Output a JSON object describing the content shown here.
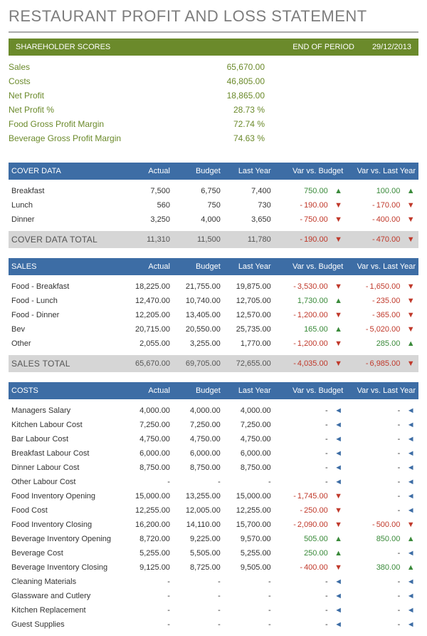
{
  "title": "RESTAURANT PROFIT AND LOSS STATEMENT",
  "shareholder": {
    "banner_left": "SHAREHOLDER SCORES",
    "banner_mid": "END OF PERIOD",
    "banner_date": "29/12/2013",
    "rows": [
      {
        "label": "Sales",
        "value": "65,670.00"
      },
      {
        "label": "Costs",
        "value": "46,805.00"
      },
      {
        "label": "Net Profit",
        "value": "18,865.00"
      },
      {
        "label": "Net Profit %",
        "value": "28.73  %"
      },
      {
        "label": "Food Gross Profit Margin",
        "value": "72.74  %"
      },
      {
        "label": "Beverage Gross Profit Margin",
        "value": "74.63  %"
      }
    ]
  },
  "columns": {
    "c0": "",
    "c1": "Actual",
    "c2": "Budget",
    "c3": "Last Year",
    "c4": "Var vs. Budget",
    "c5": "Var vs. Last Year"
  },
  "sections": [
    {
      "name": "COVER DATA",
      "rows": [
        {
          "label": "Breakfast",
          "actual": "7,500",
          "budget": "6,750",
          "last": "7,400",
          "vb": "750.00",
          "vb_neg": false,
          "vb_ind": "up",
          "vl": "100.00",
          "vl_neg": false,
          "vl_ind": "up"
        },
        {
          "label": "Lunch",
          "actual": "560",
          "budget": "750",
          "last": "730",
          "vb": "190.00",
          "vb_neg": true,
          "vb_ind": "dn",
          "vl": "170.00",
          "vl_neg": true,
          "vl_ind": "dn"
        },
        {
          "label": "Dinner",
          "actual": "3,250",
          "budget": "4,000",
          "last": "3,650",
          "vb": "750.00",
          "vb_neg": true,
          "vb_ind": "dn",
          "vl": "400.00",
          "vl_neg": true,
          "vl_ind": "dn"
        }
      ],
      "total": {
        "label": "COVER DATA TOTAL",
        "actual": "11,310",
        "budget": "11,500",
        "last": "11,780",
        "vb": "190.00",
        "vb_neg": true,
        "vb_ind": "dn",
        "vl": "470.00",
        "vl_neg": true,
        "vl_ind": "dn"
      }
    },
    {
      "name": "SALES",
      "rows": [
        {
          "label": "Food - Breakfast",
          "actual": "18,225.00",
          "budget": "21,755.00",
          "last": "19,875.00",
          "vb": "3,530.00",
          "vb_neg": true,
          "vb_ind": "dn",
          "vl": "1,650.00",
          "vl_neg": true,
          "vl_ind": "dn"
        },
        {
          "label": "Food - Lunch",
          "actual": "12,470.00",
          "budget": "10,740.00",
          "last": "12,705.00",
          "vb": "1,730.00",
          "vb_neg": false,
          "vb_ind": "up",
          "vl": "235.00",
          "vl_neg": true,
          "vl_ind": "dn"
        },
        {
          "label": "Food - Dinner",
          "actual": "12,205.00",
          "budget": "13,405.00",
          "last": "12,570.00",
          "vb": "1,200.00",
          "vb_neg": true,
          "vb_ind": "dn",
          "vl": "365.00",
          "vl_neg": true,
          "vl_ind": "dn"
        },
        {
          "label": "Bev",
          "actual": "20,715.00",
          "budget": "20,550.00",
          "last": "25,735.00",
          "vb": "165.00",
          "vb_neg": false,
          "vb_ind": "up",
          "vl": "5,020.00",
          "vl_neg": true,
          "vl_ind": "dn"
        },
        {
          "label": "Other",
          "actual": "2,055.00",
          "budget": "3,255.00",
          "last": "1,770.00",
          "vb": "1,200.00",
          "vb_neg": true,
          "vb_ind": "dn",
          "vl": "285.00",
          "vl_neg": false,
          "vl_ind": "up"
        }
      ],
      "total": {
        "label": "SALES TOTAL",
        "actual": "65,670.00",
        "budget": "69,705.00",
        "last": "72,655.00",
        "vb": "4,035.00",
        "vb_neg": true,
        "vb_ind": "dn",
        "vl": "6,985.00",
        "vl_neg": true,
        "vl_ind": "dn"
      }
    },
    {
      "name": "COSTS",
      "rows": [
        {
          "label": "Managers Salary",
          "actual": "4,000.00",
          "budget": "4,000.00",
          "last": "4,000.00",
          "vb": "-",
          "vb_neg": null,
          "vb_ind": "eq",
          "vl": "-",
          "vl_neg": null,
          "vl_ind": "eq"
        },
        {
          "label": "Kitchen Labour Cost",
          "actual": "7,250.00",
          "budget": "7,250.00",
          "last": "7,250.00",
          "vb": "-",
          "vb_neg": null,
          "vb_ind": "eq",
          "vl": "-",
          "vl_neg": null,
          "vl_ind": "eq"
        },
        {
          "label": "Bar Labour Cost",
          "actual": "4,750.00",
          "budget": "4,750.00",
          "last": "4,750.00",
          "vb": "-",
          "vb_neg": null,
          "vb_ind": "eq",
          "vl": "-",
          "vl_neg": null,
          "vl_ind": "eq"
        },
        {
          "label": "Breakfast Labour Cost",
          "actual": "6,000.00",
          "budget": "6,000.00",
          "last": "6,000.00",
          "vb": "-",
          "vb_neg": null,
          "vb_ind": "eq",
          "vl": "-",
          "vl_neg": null,
          "vl_ind": "eq"
        },
        {
          "label": "Dinner Labour Cost",
          "actual": "8,750.00",
          "budget": "8,750.00",
          "last": "8,750.00",
          "vb": "-",
          "vb_neg": null,
          "vb_ind": "eq",
          "vl": "-",
          "vl_neg": null,
          "vl_ind": "eq"
        },
        {
          "label": "Other Labour Cost",
          "actual": "-",
          "budget": "-",
          "last": "-",
          "vb": "-",
          "vb_neg": null,
          "vb_ind": "eq",
          "vl": "-",
          "vl_neg": null,
          "vl_ind": "eq"
        },
        {
          "label": "Food Inventory Opening",
          "actual": "15,000.00",
          "budget": "13,255.00",
          "last": "15,000.00",
          "vb": "1,745.00",
          "vb_neg": true,
          "vb_ind": "dn",
          "vl": "-",
          "vl_neg": null,
          "vl_ind": "eq"
        },
        {
          "label": "Food Cost",
          "actual": "12,255.00",
          "budget": "12,005.00",
          "last": "12,255.00",
          "vb": "250.00",
          "vb_neg": true,
          "vb_ind": "dn",
          "vl": "-",
          "vl_neg": null,
          "vl_ind": "eq"
        },
        {
          "label": "Food Inventory Closing",
          "actual": "16,200.00",
          "budget": "14,110.00",
          "last": "15,700.00",
          "vb": "2,090.00",
          "vb_neg": true,
          "vb_ind": "dn",
          "vl": "500.00",
          "vl_neg": true,
          "vl_ind": "dn"
        },
        {
          "label": "Beverage Inventory Opening",
          "actual": "8,720.00",
          "budget": "9,225.00",
          "last": "9,570.00",
          "vb": "505.00",
          "vb_neg": false,
          "vb_ind": "up",
          "vl": "850.00",
          "vl_neg": false,
          "vl_ind": "up"
        },
        {
          "label": "Beverage Cost",
          "actual": "5,255.00",
          "budget": "5,505.00",
          "last": "5,255.00",
          "vb": "250.00",
          "vb_neg": false,
          "vb_ind": "up",
          "vl": "-",
          "vl_neg": null,
          "vl_ind": "eq"
        },
        {
          "label": "Beverage Inventory Closing",
          "actual": "9,125.00",
          "budget": "8,725.00",
          "last": "9,505.00",
          "vb": "400.00",
          "vb_neg": true,
          "vb_ind": "dn",
          "vl": "380.00",
          "vl_neg": false,
          "vl_ind": "up"
        },
        {
          "label": "Cleaning Materials",
          "actual": "-",
          "budget": "-",
          "last": "-",
          "vb": "-",
          "vb_neg": null,
          "vb_ind": "eq",
          "vl": "-",
          "vl_neg": null,
          "vl_ind": "eq"
        },
        {
          "label": "Glassware and Cutlery",
          "actual": "-",
          "budget": "-",
          "last": "-",
          "vb": "-",
          "vb_neg": null,
          "vb_ind": "eq",
          "vl": "-",
          "vl_neg": null,
          "vl_ind": "eq"
        },
        {
          "label": "Kitchen Replacement",
          "actual": "-",
          "budget": "-",
          "last": "-",
          "vb": "-",
          "vb_neg": null,
          "vb_ind": "eq",
          "vl": "-",
          "vl_neg": null,
          "vl_ind": "eq"
        },
        {
          "label": "Guest Supplies",
          "actual": "-",
          "budget": "-",
          "last": "-",
          "vb": "-",
          "vb_neg": null,
          "vb_ind": "eq",
          "vl": "-",
          "vl_neg": null,
          "vl_ind": "eq"
        }
      ],
      "total": null
    }
  ],
  "style": {
    "green": "#6b8a2b",
    "blue": "#3d6da5",
    "grey": "#d6d6d6",
    "pos": "#3a8a3a",
    "neg": "#c0392b"
  }
}
